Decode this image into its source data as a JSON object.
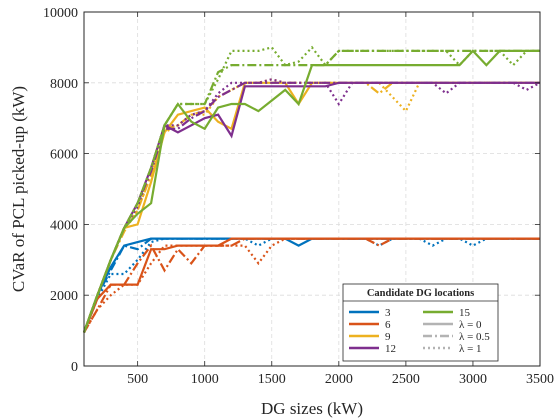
{
  "chart_data": {
    "type": "line",
    "title": "",
    "xlabel": "DG sizes (kW)",
    "ylabel": "CVaR of PCL picked-up (kW)",
    "xlim": [
      100,
      3500
    ],
    "ylim": [
      0,
      10000
    ],
    "xticks": [
      500,
      1000,
      1500,
      2000,
      2500,
      3000,
      3500
    ],
    "yticks": [
      0,
      2000,
      4000,
      6000,
      8000,
      10000
    ],
    "grid": true,
    "legend": {
      "title": "Candidate DG locations",
      "placement": "bottom-right",
      "color_entries": [
        {
          "label": "3",
          "color": "#0072bd"
        },
        {
          "label": "6",
          "color": "#d95319"
        },
        {
          "label": "9",
          "color": "#edb120"
        },
        {
          "label": "12",
          "color": "#7e2f8e"
        },
        {
          "label": "15",
          "color": "#77ac30"
        }
      ],
      "style_entries": [
        {
          "label": "λ = 0",
          "dash": "solid"
        },
        {
          "label": "λ = 0.5",
          "dash": "dashdot"
        },
        {
          "label": "λ = 1",
          "dash": "dotted"
        }
      ]
    },
    "x": [
      100,
      200,
      300,
      400,
      500,
      600,
      700,
      800,
      900,
      1000,
      1100,
      1200,
      1300,
      1400,
      1500,
      1600,
      1700,
      1800,
      1900,
      2000,
      2100,
      2200,
      2300,
      2400,
      2500,
      2600,
      2700,
      2800,
      2900,
      3000,
      3100,
      3200,
      3300,
      3400,
      3500
    ],
    "series": [
      {
        "location": "3",
        "lambda": "0",
        "color": "#0072bd",
        "dash": "solid",
        "values": [
          950,
          2000,
          2800,
          3400,
          3500,
          3600,
          3600,
          3600,
          3600,
          3600,
          3600,
          3600,
          3600,
          3600,
          3600,
          3600,
          3400,
          3600,
          3600,
          3600,
          3600,
          3600,
          3600,
          3600,
          3600,
          3600,
          3600,
          3600,
          3600,
          3600,
          3600,
          3600,
          3600,
          3600,
          3600
        ]
      },
      {
        "location": "3",
        "lambda": "0.5",
        "color": "#0072bd",
        "dash": "dashdot",
        "values": [
          950,
          2000,
          2700,
          3400,
          3300,
          3600,
          3600,
          3600,
          3600,
          3600,
          3600,
          3600,
          3600,
          3600,
          3600,
          3600,
          3600,
          3600,
          3600,
          3600,
          3600,
          3600,
          3600,
          3600,
          3600,
          3600,
          3600,
          3600,
          3600,
          3600,
          3600,
          3600,
          3600,
          3600,
          3600
        ]
      },
      {
        "location": "3",
        "lambda": "1",
        "color": "#0072bd",
        "dash": "dotted",
        "values": [
          950,
          1900,
          2600,
          2600,
          3000,
          3500,
          3600,
          3600,
          3600,
          3600,
          3600,
          3600,
          3600,
          3400,
          3600,
          3600,
          3600,
          3600,
          3600,
          3600,
          3600,
          3600,
          3400,
          3600,
          3600,
          3600,
          3400,
          3600,
          3600,
          3400,
          3600,
          3600,
          3600,
          3600,
          3600
        ]
      },
      {
        "location": "6",
        "lambda": "0",
        "color": "#d95319",
        "dash": "solid",
        "values": [
          950,
          1900,
          2300,
          2300,
          2300,
          3300,
          3300,
          3400,
          3400,
          3400,
          3400,
          3600,
          3600,
          3600,
          3600,
          3600,
          3600,
          3600,
          3600,
          3600,
          3600,
          3600,
          3600,
          3600,
          3600,
          3600,
          3600,
          3600,
          3600,
          3600,
          3600,
          3600,
          3600,
          3600,
          3600
        ]
      },
      {
        "location": "6",
        "lambda": "0.5",
        "color": "#d95319",
        "dash": "dashdot",
        "values": [
          950,
          1600,
          2300,
          2300,
          2900,
          3400,
          2700,
          3300,
          2900,
          3400,
          3400,
          3400,
          3600,
          3600,
          3600,
          3600,
          3600,
          3600,
          3600,
          3600,
          3600,
          3600,
          3400,
          3600,
          3600,
          3600,
          3600,
          3600,
          3600,
          3600,
          3600,
          3600,
          3600,
          3600,
          3600
        ]
      },
      {
        "location": "6",
        "lambda": "1",
        "color": "#d95319",
        "dash": "dotted",
        "values": [
          950,
          1600,
          2000,
          2300,
          2300,
          2900,
          3400,
          3400,
          3400,
          3400,
          3400,
          3400,
          3400,
          2900,
          3400,
          3600,
          3600,
          3600,
          3600,
          3600,
          3600,
          3600,
          3600,
          3600,
          3600,
          3600,
          3600,
          3600,
          3600,
          3600,
          3600,
          3600,
          3600,
          3600,
          3600
        ]
      },
      {
        "location": "9",
        "lambda": "0",
        "color": "#edb120",
        "dash": "solid",
        "values": [
          950,
          2000,
          3000,
          3900,
          4000,
          5200,
          6600,
          7100,
          7200,
          7300,
          6900,
          6700,
          8000,
          8000,
          8000,
          8000,
          7400,
          8000,
          8000,
          8000,
          8000,
          8000,
          8000,
          8000,
          8000,
          8000,
          8000,
          8000,
          8000,
          8000,
          8000,
          8000,
          8000,
          8000,
          8000
        ]
      },
      {
        "location": "9",
        "lambda": "0.5",
        "color": "#edb120",
        "dash": "dashdot",
        "values": [
          950,
          2000,
          3000,
          3800,
          4400,
          5400,
          6700,
          6800,
          7100,
          7200,
          7600,
          7800,
          8000,
          8000,
          8000,
          8000,
          8000,
          8000,
          8000,
          8000,
          8000,
          8000,
          7700,
          8000,
          8000,
          8000,
          8000,
          8000,
          8000,
          8000,
          8000,
          8000,
          8000,
          8000,
          8000
        ]
      },
      {
        "location": "9",
        "lambda": "1",
        "color": "#edb120",
        "dash": "dotted",
        "values": [
          950,
          2000,
          3000,
          3900,
          4400,
          5400,
          6600,
          6800,
          7100,
          7100,
          7600,
          7800,
          8000,
          8000,
          8100,
          8000,
          8000,
          8000,
          8000,
          8000,
          8000,
          8000,
          8000,
          7600,
          7200,
          8000,
          8000,
          8000,
          8000,
          8000,
          8000,
          8000,
          8000,
          8000,
          8000
        ]
      },
      {
        "location": "12",
        "lambda": "0",
        "color": "#7e2f8e",
        "dash": "solid",
        "values": [
          950,
          2000,
          3000,
          3900,
          4600,
          5600,
          6800,
          6600,
          6800,
          7000,
          7100,
          6500,
          7900,
          7900,
          7900,
          7900,
          7900,
          7900,
          7900,
          8000,
          8000,
          8000,
          8000,
          8000,
          8000,
          8000,
          8000,
          8000,
          8000,
          8000,
          8000,
          8000,
          8000,
          8000,
          8000
        ]
      },
      {
        "location": "12",
        "lambda": "0.5",
        "color": "#7e2f8e",
        "dash": "dashdot",
        "values": [
          950,
          2000,
          3000,
          3900,
          4600,
          5500,
          6700,
          6700,
          7000,
          7200,
          7600,
          7800,
          8000,
          8000,
          8000,
          8000,
          8000,
          8000,
          8000,
          8000,
          8000,
          8000,
          8000,
          8000,
          8000,
          8000,
          8000,
          8000,
          8000,
          8000,
          8000,
          8000,
          8000,
          8000,
          8000
        ]
      },
      {
        "location": "12",
        "lambda": "1",
        "color": "#7e2f8e",
        "dash": "dotted",
        "values": [
          950,
          2000,
          3000,
          3900,
          4500,
          5600,
          6800,
          6800,
          7100,
          7200,
          7700,
          8000,
          8000,
          8000,
          8100,
          8000,
          8000,
          8000,
          8000,
          7400,
          8000,
          8000,
          8000,
          8000,
          8000,
          8000,
          8000,
          7700,
          8000,
          8000,
          8000,
          8000,
          8000,
          7800,
          8000
        ]
      },
      {
        "location": "15",
        "lambda": "0",
        "color": "#77ac30",
        "dash": "solid",
        "values": [
          950,
          2000,
          3000,
          3900,
          4300,
          4600,
          6800,
          7400,
          6900,
          6700,
          7300,
          7400,
          7400,
          7200,
          7500,
          7800,
          7400,
          8500,
          8500,
          8500,
          8500,
          8500,
          8500,
          8500,
          8500,
          8500,
          8500,
          8500,
          8500,
          8900,
          8500,
          8900,
          8900,
          8900,
          8900
        ]
      },
      {
        "location": "15",
        "lambda": "0.5",
        "color": "#77ac30",
        "dash": "dashdot",
        "values": [
          950,
          2000,
          3000,
          3900,
          4600,
          5600,
          6800,
          7400,
          7400,
          7400,
          8300,
          8500,
          8500,
          8500,
          8500,
          8500,
          8500,
          8500,
          8500,
          8900,
          8900,
          8900,
          8900,
          8900,
          8900,
          8900,
          8900,
          8900,
          8900,
          8900,
          8900,
          8900,
          8900,
          8900,
          8900
        ]
      },
      {
        "location": "15",
        "lambda": "1",
        "color": "#77ac30",
        "dash": "dotted",
        "values": [
          950,
          2000,
          3000,
          3900,
          4600,
          5600,
          6800,
          7400,
          7400,
          7400,
          8100,
          8900,
          8900,
          8900,
          9000,
          8500,
          8600,
          9000,
          8500,
          8900,
          8900,
          8900,
          8900,
          8900,
          8900,
          8900,
          8900,
          8900,
          8500,
          8900,
          8900,
          8900,
          8500,
          8900,
          8900
        ]
      }
    ]
  }
}
